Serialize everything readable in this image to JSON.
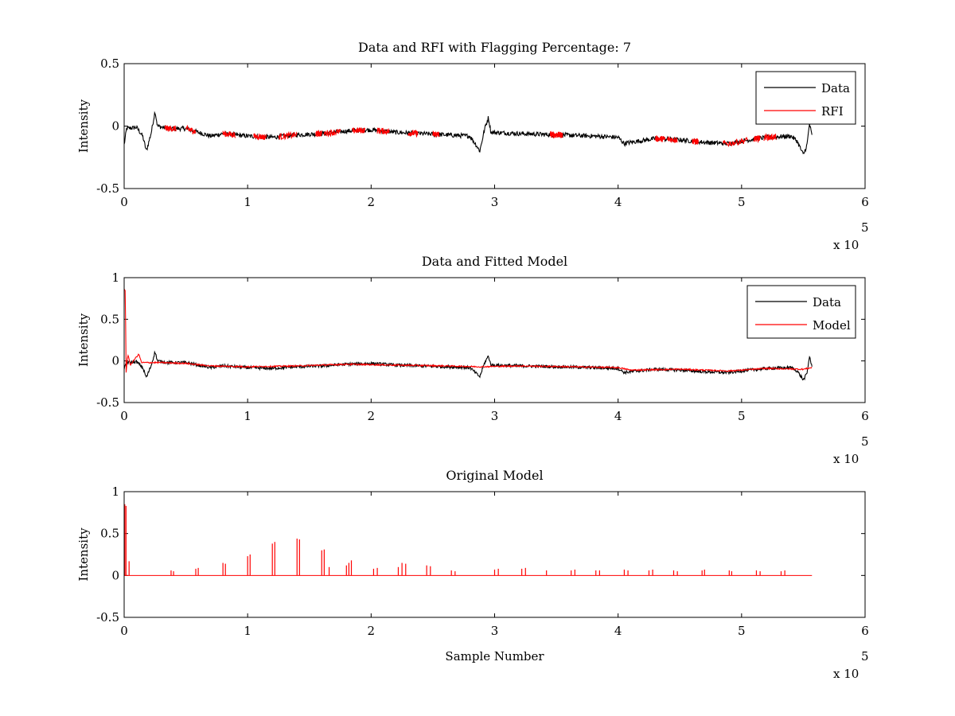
{
  "chart_data": [
    {
      "type": "line",
      "title": "Data and RFI with Flagging Percentage: 7",
      "xlabel": "",
      "ylabel": "Intensity",
      "xlim": [
        0,
        6
      ],
      "ylim": [
        -0.5,
        0.5
      ],
      "xticks": [
        "0",
        "1",
        "2",
        "3",
        "4",
        "5",
        "6"
      ],
      "yticks": [
        "-0.5",
        "0",
        "0.5"
      ],
      "x_multiplier": "x 10",
      "x_multiplier_exp": "5",
      "legend": "top-right",
      "series": [
        {
          "name": "Data",
          "color": "#000000",
          "points": [
            [
              0,
              -0.15
            ],
            [
              0.02,
              -0.02
            ],
            [
              0.1,
              -0.01
            ],
            [
              0.15,
              -0.08
            ],
            [
              0.18,
              -0.2
            ],
            [
              0.22,
              -0.05
            ],
            [
              0.25,
              0.12
            ],
            [
              0.27,
              0.0
            ],
            [
              0.35,
              -0.02
            ],
            [
              0.5,
              -0.02
            ],
            [
              0.6,
              -0.05
            ],
            [
              0.7,
              -0.08
            ],
            [
              0.8,
              -0.06
            ],
            [
              1.0,
              -0.08
            ],
            [
              1.2,
              -0.09
            ],
            [
              1.4,
              -0.07
            ],
            [
              1.6,
              -0.06
            ],
            [
              1.8,
              -0.04
            ],
            [
              2.0,
              -0.03
            ],
            [
              2.2,
              -0.05
            ],
            [
              2.4,
              -0.06
            ],
            [
              2.6,
              -0.07
            ],
            [
              2.8,
              -0.08
            ],
            [
              2.85,
              -0.15
            ],
            [
              2.88,
              -0.2
            ],
            [
              2.92,
              -0.02
            ],
            [
              2.95,
              0.07
            ],
            [
              2.97,
              -0.05
            ],
            [
              3.2,
              -0.06
            ],
            [
              3.5,
              -0.07
            ],
            [
              3.8,
              -0.08
            ],
            [
              4.0,
              -0.09
            ],
            [
              4.05,
              -0.14
            ],
            [
              4.1,
              -0.13
            ],
            [
              4.3,
              -0.1
            ],
            [
              4.5,
              -0.11
            ],
            [
              4.7,
              -0.13
            ],
            [
              4.9,
              -0.14
            ],
            [
              5.0,
              -0.12
            ],
            [
              5.2,
              -0.09
            ],
            [
              5.4,
              -0.08
            ],
            [
              5.45,
              -0.12
            ],
            [
              5.5,
              -0.23
            ],
            [
              5.53,
              -0.15
            ],
            [
              5.55,
              0.02
            ],
            [
              5.57,
              -0.08
            ]
          ],
          "noise": 0.018
        },
        {
          "name": "RFI",
          "color": "#ff0000",
          "segments": [
            [
              0.33,
              0.42
            ],
            [
              0.5,
              0.58
            ],
            [
              0.8,
              0.9
            ],
            [
              1.05,
              1.15
            ],
            [
              1.25,
              1.4
            ],
            [
              1.55,
              1.6
            ],
            [
              1.62,
              1.75
            ],
            [
              1.85,
              1.95
            ],
            [
              2.05,
              2.15
            ],
            [
              2.3,
              2.38
            ],
            [
              2.5,
              2.55
            ],
            [
              3.45,
              3.5
            ],
            [
              3.5,
              3.55
            ],
            [
              4.3,
              4.38
            ],
            [
              4.4,
              4.48
            ],
            [
              4.6,
              4.65
            ],
            [
              4.85,
              5.05
            ],
            [
              5.1,
              5.15
            ],
            [
              5.18,
              5.28
            ]
          ],
          "noise": 0.025
        }
      ]
    },
    {
      "type": "line",
      "title": "Data and Fitted Model",
      "xlabel": "",
      "ylabel": "Intensity",
      "xlim": [
        0,
        6
      ],
      "ylim": [
        -0.5,
        1
      ],
      "xticks": [
        "0",
        "1",
        "2",
        "3",
        "4",
        "5",
        "6"
      ],
      "yticks": [
        "-0.5",
        "0",
        "0.5",
        "1"
      ],
      "x_multiplier": "x 10",
      "x_multiplier_exp": "5",
      "legend": "top-right",
      "series": [
        {
          "name": "Data",
          "color": "#000000",
          "points": [
            [
              0,
              -0.1
            ],
            [
              0.02,
              -0.02
            ],
            [
              0.1,
              -0.01
            ],
            [
              0.15,
              -0.08
            ],
            [
              0.18,
              -0.2
            ],
            [
              0.22,
              -0.05
            ],
            [
              0.25,
              0.11
            ],
            [
              0.27,
              0.0
            ],
            [
              0.35,
              -0.02
            ],
            [
              0.5,
              -0.02
            ],
            [
              0.6,
              -0.05
            ],
            [
              0.7,
              -0.08
            ],
            [
              0.8,
              -0.06
            ],
            [
              1.0,
              -0.08
            ],
            [
              1.2,
              -0.09
            ],
            [
              1.4,
              -0.07
            ],
            [
              1.6,
              -0.06
            ],
            [
              1.8,
              -0.04
            ],
            [
              2.0,
              -0.03
            ],
            [
              2.2,
              -0.05
            ],
            [
              2.4,
              -0.06
            ],
            [
              2.6,
              -0.07
            ],
            [
              2.8,
              -0.08
            ],
            [
              2.85,
              -0.15
            ],
            [
              2.88,
              -0.19
            ],
            [
              2.92,
              -0.02
            ],
            [
              2.95,
              0.06
            ],
            [
              2.97,
              -0.05
            ],
            [
              3.2,
              -0.06
            ],
            [
              3.5,
              -0.07
            ],
            [
              3.8,
              -0.08
            ],
            [
              4.0,
              -0.09
            ],
            [
              4.05,
              -0.14
            ],
            [
              4.1,
              -0.13
            ],
            [
              4.3,
              -0.1
            ],
            [
              4.5,
              -0.11
            ],
            [
              4.7,
              -0.13
            ],
            [
              4.9,
              -0.14
            ],
            [
              5.0,
              -0.12
            ],
            [
              5.2,
              -0.09
            ],
            [
              5.4,
              -0.08
            ],
            [
              5.45,
              -0.12
            ],
            [
              5.5,
              -0.23
            ],
            [
              5.53,
              -0.15
            ],
            [
              5.55,
              0.06
            ],
            [
              5.57,
              -0.08
            ]
          ],
          "noise": 0.018
        },
        {
          "name": "Model",
          "color": "#ff0000",
          "points": [
            [
              0,
              0.85
            ],
            [
              0.01,
              0.85
            ],
            [
              0.015,
              -0.15
            ],
            [
              0.03,
              0.08
            ],
            [
              0.05,
              -0.05
            ],
            [
              0.1,
              0.05
            ],
            [
              0.12,
              0.08
            ],
            [
              0.14,
              -0.02
            ],
            [
              0.3,
              -0.02
            ],
            [
              0.5,
              -0.03
            ],
            [
              0.7,
              -0.06
            ],
            [
              1.0,
              -0.07
            ],
            [
              1.4,
              -0.06
            ],
            [
              1.8,
              -0.04
            ],
            [
              2.2,
              -0.05
            ],
            [
              2.6,
              -0.06
            ],
            [
              2.88,
              -0.07
            ],
            [
              3.2,
              -0.06
            ],
            [
              3.6,
              -0.07
            ],
            [
              4.0,
              -0.08
            ],
            [
              4.1,
              -0.11
            ],
            [
              4.5,
              -0.1
            ],
            [
              4.9,
              -0.12
            ],
            [
              5.2,
              -0.09
            ],
            [
              5.5,
              -0.1
            ],
            [
              5.57,
              -0.08
            ]
          ],
          "noise": 0.008
        }
      ]
    },
    {
      "type": "line",
      "title": "Original Model",
      "xlabel": "Sample Number",
      "ylabel": "Intensity",
      "xlim": [
        0,
        6
      ],
      "ylim": [
        -0.5,
        1
      ],
      "xticks": [
        "0",
        "1",
        "2",
        "3",
        "4",
        "5",
        "6"
      ],
      "yticks": [
        "-0.5",
        "0",
        "0.5",
        "1"
      ],
      "x_multiplier": "x 10",
      "x_multiplier_exp": "5",
      "legend": "none",
      "series": [
        {
          "name": "Original Model",
          "color": "#ff0000",
          "baseline": 0,
          "end_x": 5.57,
          "spikes": [
            [
              0.005,
              0.85
            ],
            [
              0.015,
              0.83
            ],
            [
              0.04,
              0.17
            ],
            [
              0.38,
              0.06
            ],
            [
              0.4,
              0.05
            ],
            [
              0.58,
              0.08
            ],
            [
              0.6,
              0.09
            ],
            [
              0.8,
              0.15
            ],
            [
              0.82,
              0.14
            ],
            [
              1.0,
              0.23
            ],
            [
              1.02,
              0.25
            ],
            [
              1.2,
              0.38
            ],
            [
              1.22,
              0.4
            ],
            [
              1.4,
              0.44
            ],
            [
              1.42,
              0.43
            ],
            [
              1.6,
              0.3
            ],
            [
              1.62,
              0.31
            ],
            [
              1.66,
              0.1
            ],
            [
              1.8,
              0.12
            ],
            [
              1.82,
              0.15
            ],
            [
              1.84,
              0.18
            ],
            [
              2.02,
              0.08
            ],
            [
              2.05,
              0.09
            ],
            [
              2.22,
              0.1
            ],
            [
              2.25,
              0.15
            ],
            [
              2.28,
              0.14
            ],
            [
              2.45,
              0.12
            ],
            [
              2.48,
              0.11
            ],
            [
              2.65,
              0.06
            ],
            [
              2.68,
              0.05
            ],
            [
              3.0,
              0.07
            ],
            [
              3.03,
              0.08
            ],
            [
              3.22,
              0.08
            ],
            [
              3.25,
              0.09
            ],
            [
              3.42,
              0.06
            ],
            [
              3.62,
              0.06
            ],
            [
              3.65,
              0.07
            ],
            [
              3.82,
              0.06
            ],
            [
              3.85,
              0.06
            ],
            [
              4.05,
              0.07
            ],
            [
              4.08,
              0.06
            ],
            [
              4.25,
              0.06
            ],
            [
              4.28,
              0.07
            ],
            [
              4.45,
              0.06
            ],
            [
              4.48,
              0.05
            ],
            [
              4.68,
              0.06
            ],
            [
              4.7,
              0.07
            ],
            [
              4.9,
              0.06
            ],
            [
              4.92,
              0.05
            ],
            [
              5.12,
              0.06
            ],
            [
              5.15,
              0.05
            ],
            [
              5.32,
              0.05
            ],
            [
              5.35,
              0.06
            ]
          ]
        }
      ]
    }
  ]
}
